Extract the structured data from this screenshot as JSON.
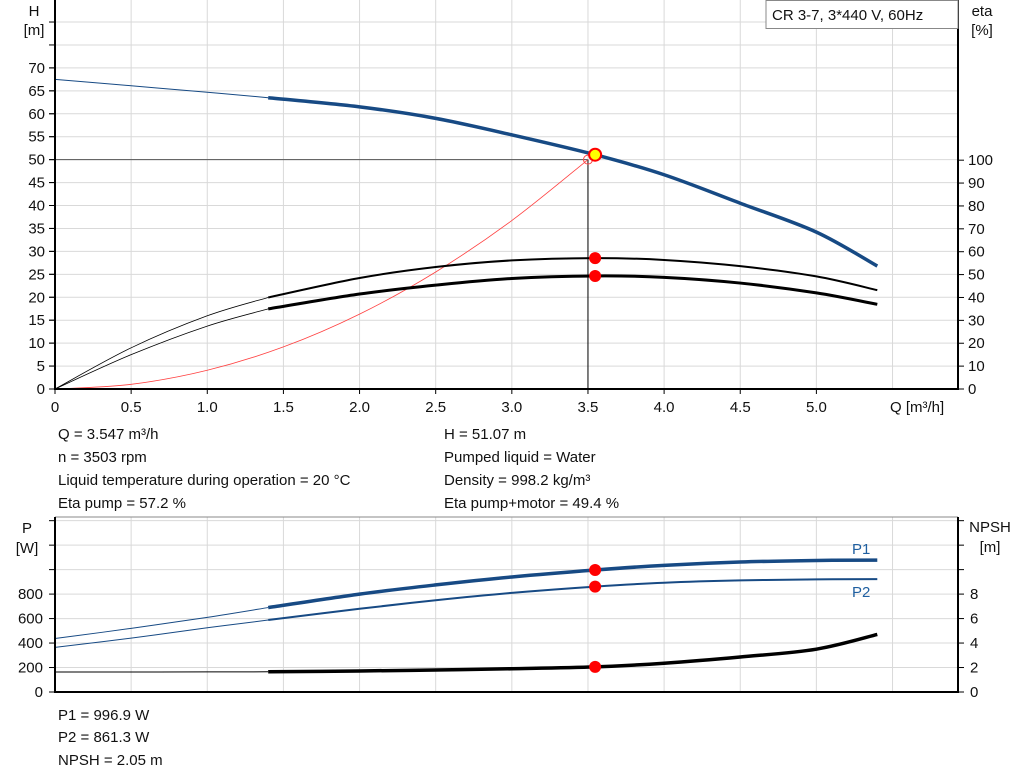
{
  "legend_box": "CR 3-7, 3*440 V, 60Hz",
  "colors": {
    "pump_curve": "#174a84",
    "efficiency": "#000000",
    "system_curve": "#ff4040",
    "operating_point": "#ff0000",
    "duty_marker_fill": "#ffff00"
  },
  "chart_data": [
    {
      "type": "line",
      "title": "",
      "xlabel": "Q [m³/h]",
      "ylabel_left": [
        "H",
        "[m]"
      ],
      "ylabel_right": [
        "eta",
        "[%]"
      ],
      "xlim": [
        0,
        5.93
      ],
      "ylim_left": [
        0,
        84.8
      ],
      "ylim_right": [
        0,
        170
      ],
      "grid": true,
      "x_ticks": [
        "0",
        "0.5",
        "1.0",
        "1.5",
        "2.0",
        "2.5",
        "3.0",
        "3.5",
        "4.0",
        "4.5",
        "5.0"
      ],
      "y_ticks_left": [
        "0",
        "5",
        "10",
        "15",
        "20",
        "25",
        "30",
        "35",
        "40",
        "45",
        "50",
        "55",
        "60",
        "65",
        "70"
      ],
      "y_ticks_right": [
        "0",
        "10",
        "20",
        "30",
        "40",
        "50",
        "60",
        "70",
        "80",
        "90",
        "100"
      ],
      "series": [
        {
          "axis": "left",
          "x": [
            0,
            0.5,
            1.0,
            1.4,
            2.0,
            2.5,
            3.0,
            3.547,
            4.0,
            4.5,
            5.0,
            5.4
          ],
          "y": [
            67.5,
            66.1,
            64.7,
            63.5,
            61.5,
            59.0,
            55.4,
            51.07,
            46.7,
            40.5,
            34.2,
            26.8
          ]
        },
        {
          "axis": "right",
          "x": [
            0,
            0.5,
            1.0,
            1.4,
            2.0,
            2.5,
            3.0,
            3.547,
            4.0,
            4.5,
            5.0,
            5.4
          ],
          "y": [
            0,
            18,
            32,
            40,
            48.5,
            53.3,
            56.2,
            57.2,
            56.4,
            53.7,
            49.2,
            43.2
          ]
        },
        {
          "axis": "right",
          "x": [
            0,
            0.5,
            1.0,
            1.4,
            2.0,
            2.5,
            3.0,
            3.547,
            4.0,
            4.5,
            5.0,
            5.4
          ],
          "y": [
            0,
            15,
            27.5,
            35,
            41.5,
            45.4,
            48.3,
            49.4,
            48.8,
            46.3,
            42,
            37
          ]
        },
        {
          "axis": "left",
          "x": [
            0,
            0.5,
            1.0,
            1.5,
            2.0,
            2.5,
            3.0,
            3.5
          ],
          "y": [
            0,
            1.02,
            4.08,
            9.18,
            16.33,
            25.51,
            36.73,
            50
          ]
        }
      ],
      "duty_point": {
        "q": 3.5,
        "h": 50
      },
      "operating_point": {
        "q": 3.547,
        "h": 51.07,
        "eta_pump": 57.2,
        "eta_pump_motor": 49.4
      },
      "info_left": [
        "Q = 3.547 m³/h",
        "n = 3503 rpm",
        "Liquid temperature during operation = 20 °C",
        "Eta pump = 57.2 %"
      ],
      "info_right": [
        "H = 51.07 m",
        "Pumped liquid = Water",
        "Density = 998.2 kg/m³",
        "Eta pump+motor = 49.4 %"
      ]
    },
    {
      "type": "line",
      "title": "",
      "xlim": [
        0,
        5.93
      ],
      "ylabel_left": [
        "P",
        "[W]"
      ],
      "ylabel_right": [
        "NPSH",
        "[m]"
      ],
      "ylim_left": [
        0,
        1430
      ],
      "ylim_right": [
        0,
        14.3
      ],
      "grid": true,
      "y_ticks_left": [
        "0",
        "200",
        "400",
        "600",
        "800"
      ],
      "y_ticks_right": [
        "0",
        "2",
        "4",
        "6",
        "8"
      ],
      "series": [
        {
          "name": "P1",
          "axis": "left",
          "x": [
            0,
            0.5,
            1.0,
            1.4,
            2.0,
            2.5,
            3.0,
            3.547,
            4.0,
            4.5,
            5.0,
            5.4
          ],
          "y": [
            437,
            520,
            610,
            690,
            800,
            875,
            940,
            996.9,
            1035,
            1062,
            1075,
            1078
          ]
        },
        {
          "name": "P2",
          "axis": "left",
          "x": [
            0,
            0.5,
            1.0,
            1.4,
            2.0,
            2.5,
            3.0,
            3.547,
            4.0,
            4.5,
            5.0,
            5.4
          ],
          "y": [
            365,
            440,
            525,
            588,
            680,
            750,
            810,
            861.3,
            893,
            912,
            920,
            922
          ]
        },
        {
          "axis": "right",
          "x": [
            0,
            0.5,
            1.0,
            1.4,
            2.0,
            2.5,
            3.0,
            3.547,
            4.0,
            4.5,
            5.0,
            5.4
          ],
          "y": [
            1.63,
            1.63,
            1.64,
            1.65,
            1.72,
            1.8,
            1.9,
            2.05,
            2.35,
            2.86,
            3.5,
            4.7
          ]
        }
      ],
      "operating_point": {
        "p1": 996.9,
        "p2": 861.3,
        "npsh": 2.05
      },
      "info": [
        "P1 = 996.9 W",
        "P2 = 861.3 W",
        "NPSH = 2.05 m"
      ]
    }
  ]
}
